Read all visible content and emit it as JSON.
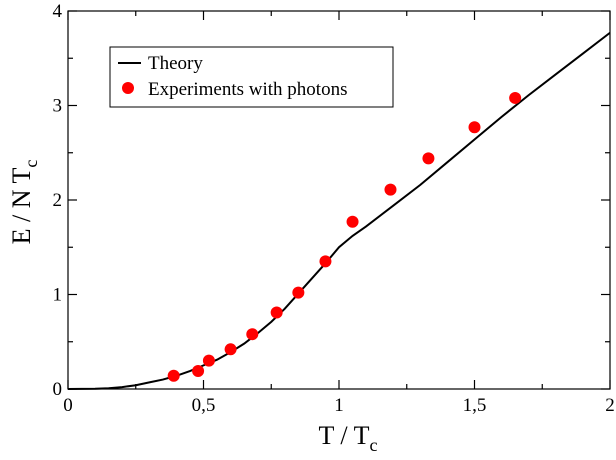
{
  "chart_data": {
    "type": "line",
    "xlabel": {
      "main": "T / T",
      "sub": "c"
    },
    "ylabel": {
      "main": "E / N T",
      "sub": "c"
    },
    "xlim": [
      0,
      2
    ],
    "ylim": [
      0,
      4
    ],
    "x_ticks": [
      0,
      0.5,
      1,
      1.5,
      2
    ],
    "x_tick_labels": [
      "0",
      "0,5",
      "1",
      "1,5",
      "2"
    ],
    "y_ticks": [
      0,
      1,
      2,
      3,
      4
    ],
    "y_tick_labels": [
      "0",
      "1",
      "2",
      "3",
      "4"
    ],
    "grid": false,
    "legend_position": "top-left",
    "series": [
      {
        "name": "Theory",
        "kind": "line",
        "color": "#000000",
        "x": [
          0,
          0.1,
          0.15,
          0.2,
          0.25,
          0.3,
          0.35,
          0.4,
          0.45,
          0.5,
          0.55,
          0.6,
          0.65,
          0.7,
          0.75,
          0.8,
          0.85,
          0.9,
          0.95,
          1.0,
          1.05,
          1.1,
          1.2,
          1.3,
          1.4,
          1.5,
          1.6,
          1.7,
          1.8,
          1.9,
          2.0
        ],
        "y": [
          0,
          0.002,
          0.008,
          0.02,
          0.04,
          0.07,
          0.1,
          0.14,
          0.19,
          0.25,
          0.31,
          0.39,
          0.48,
          0.59,
          0.71,
          0.85,
          1.01,
          1.17,
          1.33,
          1.5,
          1.62,
          1.72,
          1.94,
          2.16,
          2.4,
          2.64,
          2.88,
          3.11,
          3.33,
          3.55,
          3.77
        ]
      },
      {
        "name": "Experiments with photons",
        "kind": "scatter",
        "color": "#ff0000",
        "x": [
          0.39,
          0.48,
          0.52,
          0.6,
          0.68,
          0.77,
          0.85,
          0.95,
          1.05,
          1.19,
          1.33,
          1.5,
          1.65
        ],
        "y": [
          0.14,
          0.19,
          0.3,
          0.42,
          0.58,
          0.81,
          1.02,
          1.35,
          1.77,
          2.11,
          2.44,
          2.77,
          3.08
        ]
      }
    ]
  }
}
